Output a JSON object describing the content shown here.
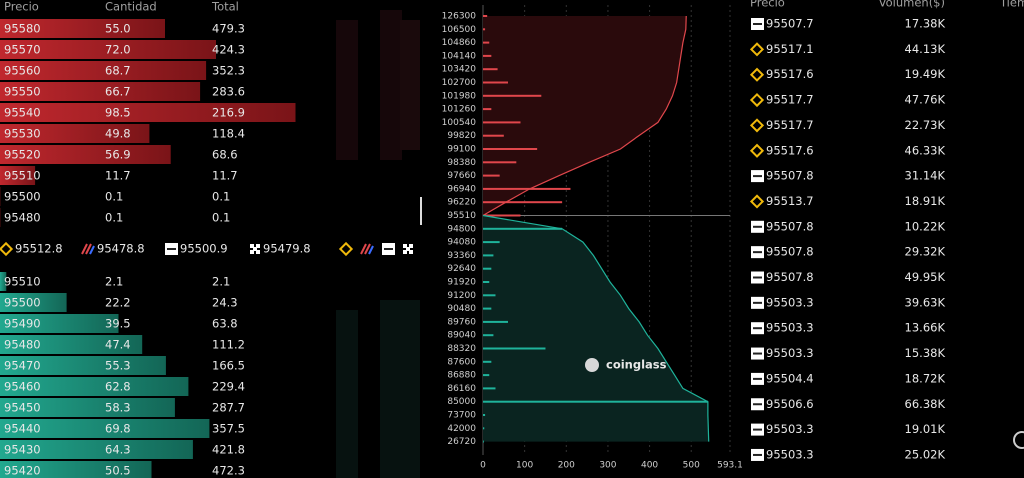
{
  "orderbook": {
    "headers": [
      "Precio",
      "Cantidad",
      "Total"
    ],
    "asks": [
      [
        "95580",
        "55.0",
        "479.3"
      ],
      [
        "95570",
        "72.0",
        "424.3"
      ],
      [
        "95560",
        "68.7",
        "352.3"
      ],
      [
        "95550",
        "66.7",
        "283.6"
      ],
      [
        "95540",
        "98.5",
        "216.9"
      ],
      [
        "95530",
        "49.8",
        "118.4"
      ],
      [
        "95520",
        "56.9",
        "68.6"
      ],
      [
        "95510",
        "11.7",
        "11.7"
      ],
      [
        "95500",
        "0.1",
        "0.1"
      ],
      [
        "95480",
        "0.1",
        "0.1"
      ]
    ],
    "bids": [
      [
        "95510",
        "2.1",
        "2.1"
      ],
      [
        "95500",
        "22.2",
        "24.3"
      ],
      [
        "95490",
        "39.5",
        "63.8"
      ],
      [
        "95480",
        "47.4",
        "111.2"
      ],
      [
        "95470",
        "55.3",
        "166.5"
      ],
      [
        "95460",
        "62.8",
        "229.4"
      ],
      [
        "95450",
        "58.3",
        "287.7"
      ],
      [
        "95440",
        "69.8",
        "357.5"
      ],
      [
        "95430",
        "64.3",
        "421.8"
      ],
      [
        "95420",
        "50.5",
        "472.3"
      ]
    ],
    "ask_color": "#b3262c",
    "bid_color": "#1f9c86"
  },
  "exchange_prices": [
    {
      "icon": "binance",
      "price": "95512.8"
    },
    {
      "icon": "slash",
      "price": "95478.8"
    },
    {
      "icon": "bybit",
      "price": "95500.9"
    },
    {
      "icon": "okx",
      "price": "95479.8"
    }
  ],
  "chart_data": {
    "type": "depth",
    "watermark": "coinglass",
    "categories": [
      126300,
      106500,
      104860,
      104140,
      103420,
      102700,
      101980,
      101260,
      100540,
      99820,
      99100,
      98380,
      97660,
      96940,
      96220,
      95510,
      94800,
      94080,
      93360,
      92640,
      91920,
      91200,
      90480,
      89760,
      89040,
      88320,
      87600,
      86880,
      86160,
      85000,
      73700,
      42000,
      26720
    ],
    "split_index": 15,
    "series": [
      {
        "name": "asks",
        "color": "#e0474c",
        "values": [
          10,
          5,
          15,
          20,
          35,
          60,
          140,
          20,
          90,
          50,
          130,
          80,
          40,
          210,
          190,
          90,
          null,
          null,
          null,
          null,
          null,
          null,
          null,
          null,
          null,
          null,
          null,
          null,
          null,
          null,
          null,
          null,
          null
        ],
        "cumulative": [
          488,
          487,
          480,
          475,
          470,
          465,
          455,
          440,
          420,
          374,
          330,
          255,
          183,
          112,
          55,
          0,
          null,
          null,
          null,
          null,
          null,
          null,
          null,
          null,
          null,
          null,
          null,
          null,
          null,
          null,
          null,
          null,
          null
        ]
      },
      {
        "name": "bids",
        "color": "#1fb39b",
        "values": [
          null,
          null,
          null,
          null,
          null,
          null,
          null,
          null,
          null,
          null,
          null,
          null,
          null,
          null,
          null,
          null,
          190,
          40,
          25,
          20,
          15,
          30,
          20,
          60,
          25,
          150,
          20,
          15,
          30,
          540,
          5,
          3,
          2
        ],
        "cumulative": [
          null,
          null,
          null,
          null,
          null,
          null,
          null,
          null,
          null,
          null,
          null,
          null,
          null,
          null,
          null,
          0,
          190,
          240,
          265,
          285,
          305,
          330,
          350,
          375,
          395,
          420,
          440,
          460,
          480,
          540,
          540,
          541,
          542
        ]
      }
    ],
    "xlim": [
      0,
      593.1
    ],
    "xticks": [
      0,
      100,
      200,
      300,
      400,
      500,
      593.1
    ],
    "grid": true
  },
  "trades": {
    "headers": [
      "Precio",
      "Volumen($)",
      "Tiem"
    ],
    "rows": [
      {
        "icon": "bybit",
        "price": "95507.7",
        "color": "#e0474c",
        "volume": "17.38K"
      },
      {
        "icon": "binance",
        "price": "95517.1",
        "color": "#e0474c",
        "volume": "44.13K"
      },
      {
        "icon": "binance",
        "price": "95517.6",
        "color": "#e0474c",
        "volume": "19.49K"
      },
      {
        "icon": "binance",
        "price": "95517.7",
        "color": "#1fb39b",
        "volume": "47.76K"
      },
      {
        "icon": "binance",
        "price": "95517.7",
        "color": "#1fb39b",
        "volume": "22.73K"
      },
      {
        "icon": "binance",
        "price": "95517.6",
        "color": "#e0474c",
        "volume": "46.33K"
      },
      {
        "icon": "bybit",
        "price": "95507.8",
        "color": "#1fb39b",
        "volume": "31.14K"
      },
      {
        "icon": "binance",
        "price": "95513.7",
        "color": "#1fb39b",
        "volume": "18.91K"
      },
      {
        "icon": "bybit",
        "price": "95507.8",
        "color": "#1fb39b",
        "volume": "10.22K"
      },
      {
        "icon": "bybit",
        "price": "95507.8",
        "color": "#1fb39b",
        "volume": "29.32K"
      },
      {
        "icon": "bybit",
        "price": "95507.8",
        "color": "#1fb39b",
        "volume": "49.95K"
      },
      {
        "icon": "bybit",
        "price": "95503.3",
        "color": "#1fb39b",
        "volume": "39.63K"
      },
      {
        "icon": "bybit",
        "price": "95503.3",
        "color": "#1fb39b",
        "volume": "13.66K"
      },
      {
        "icon": "bybit",
        "price": "95503.3",
        "color": "#1fb39b",
        "volume": "15.38K"
      },
      {
        "icon": "bybit",
        "price": "95504.4",
        "color": "#1fb39b",
        "volume": "18.72K"
      },
      {
        "icon": "bybit",
        "price": "95506.6",
        "color": "#1fb39b",
        "volume": "66.38K"
      },
      {
        "icon": "bybit",
        "price": "95503.3",
        "color": "#1fb39b",
        "volume": "19.01K"
      },
      {
        "icon": "bybit",
        "price": "95503.3",
        "color": "#1fb39b",
        "volume": "25.02K"
      }
    ]
  }
}
